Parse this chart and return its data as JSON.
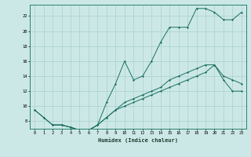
{
  "xlabel": "Humidex (Indice chaleur)",
  "xlim": [
    -0.5,
    23.5
  ],
  "ylim": [
    7,
    23.5
  ],
  "yticks": [
    8,
    10,
    12,
    14,
    16,
    18,
    20,
    22
  ],
  "xticks": [
    0,
    1,
    2,
    3,
    4,
    5,
    6,
    7,
    8,
    9,
    10,
    11,
    12,
    13,
    14,
    15,
    16,
    17,
    18,
    19,
    20,
    21,
    22,
    23
  ],
  "bg_color": "#cce8e6",
  "grid_color": "#a8d0ce",
  "line_color": "#1a7060",
  "line1_x": [
    0,
    1,
    2,
    3,
    4,
    5,
    6,
    7,
    8,
    9,
    10,
    11,
    12,
    13,
    14,
    15,
    16,
    17,
    18,
    19,
    20,
    21,
    22,
    23
  ],
  "line1_y": [
    9.5,
    8.5,
    7.5,
    7.5,
    7.2,
    6.8,
    6.8,
    7.5,
    10.5,
    13.0,
    16.0,
    13.5,
    14.0,
    16.0,
    18.5,
    20.5,
    20.5,
    20.5,
    23.0,
    23.0,
    22.5,
    21.5,
    21.5,
    22.5
  ],
  "line2_x": [
    0,
    1,
    2,
    3,
    4,
    5,
    6,
    7,
    8,
    9,
    10,
    11,
    12,
    13,
    14,
    15,
    16,
    17,
    18,
    19,
    20,
    21,
    22,
    23
  ],
  "line2_y": [
    9.5,
    8.5,
    7.5,
    7.5,
    7.2,
    6.8,
    6.8,
    7.5,
    8.5,
    9.5,
    10.0,
    10.5,
    11.0,
    11.5,
    12.0,
    12.5,
    13.0,
    13.5,
    14.0,
    14.5,
    15.5,
    13.5,
    12.0,
    12.0
  ],
  "line3_x": [
    2,
    3,
    4,
    5,
    6,
    7,
    8,
    9,
    10,
    11,
    12,
    13,
    14,
    15,
    16,
    17,
    18,
    19,
    20,
    21,
    22,
    23
  ],
  "line3_y": [
    7.5,
    7.5,
    7.2,
    6.8,
    6.8,
    7.5,
    8.5,
    9.5,
    10.5,
    11.0,
    11.5,
    12.0,
    12.5,
    13.5,
    14.0,
    14.5,
    15.0,
    15.5,
    15.5,
    14.0,
    13.5,
    13.0
  ]
}
